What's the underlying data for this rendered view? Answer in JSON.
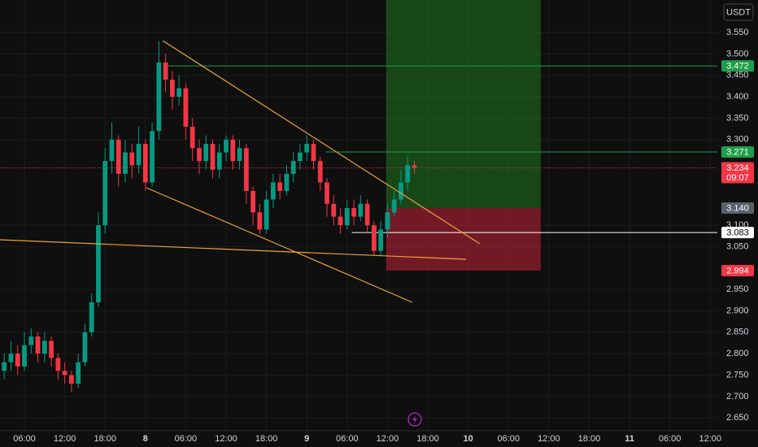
{
  "chart_data": {
    "type": "candlestick",
    "currency": "USDT",
    "x": [
      3,
      4,
      5,
      6,
      7,
      8,
      9,
      10,
      11,
      12,
      13,
      14,
      15,
      16,
      17,
      18,
      19,
      20,
      21,
      22,
      23,
      24,
      25,
      26,
      27,
      28,
      29,
      30,
      31,
      32,
      33,
      34,
      35,
      36,
      37,
      38,
      39,
      40,
      41,
      42,
      43,
      44,
      45,
      46,
      47,
      48,
      49,
      50,
      51,
      52,
      53,
      54,
      55,
      56,
      57,
      58,
      59,
      60,
      61,
      62,
      63,
      64
    ],
    "open": [
      2.76,
      2.78,
      2.8,
      2.77,
      2.82,
      2.84,
      2.8,
      2.83,
      2.79,
      2.76,
      2.75,
      2.73,
      2.78,
      2.85,
      2.92,
      3.1,
      3.25,
      3.3,
      3.22,
      3.27,
      3.24,
      3.29,
      3.2,
      3.32,
      3.48,
      3.44,
      3.4,
      3.42,
      3.33,
      3.28,
      3.25,
      3.29,
      3.23,
      3.27,
      3.3,
      3.25,
      3.28,
      3.18,
      3.13,
      3.09,
      3.16,
      3.2,
      3.18,
      3.22,
      3.25,
      3.27,
      3.29,
      3.25,
      3.2,
      3.15,
      3.12,
      3.1,
      3.14,
      3.12,
      3.15,
      3.1,
      3.04,
      3.09,
      3.13,
      3.16,
      3.2,
      3.24
    ],
    "high": [
      2.8,
      2.83,
      2.82,
      2.85,
      2.86,
      2.85,
      2.85,
      2.84,
      2.8,
      2.78,
      2.76,
      2.8,
      2.87,
      2.94,
      3.13,
      3.28,
      3.34,
      3.31,
      3.3,
      3.29,
      3.33,
      3.3,
      3.34,
      3.53,
      3.5,
      3.46,
      3.45,
      3.43,
      3.35,
      3.3,
      3.31,
      3.3,
      3.29,
      3.31,
      3.31,
      3.3,
      3.29,
      3.19,
      3.15,
      3.18,
      3.22,
      3.22,
      3.24,
      3.27,
      3.29,
      3.31,
      3.3,
      3.26,
      3.21,
      3.17,
      3.14,
      3.16,
      3.16,
      3.17,
      3.16,
      3.11,
      3.11,
      3.15,
      3.18,
      3.23,
      3.26,
      3.25
    ],
    "low": [
      2.74,
      2.76,
      2.75,
      2.76,
      2.8,
      2.78,
      2.78,
      2.77,
      2.74,
      2.73,
      2.71,
      2.72,
      2.77,
      2.84,
      2.91,
      3.08,
      3.22,
      3.19,
      3.2,
      3.21,
      3.22,
      3.18,
      3.19,
      3.3,
      3.41,
      3.37,
      3.38,
      3.3,
      3.25,
      3.22,
      3.23,
      3.21,
      3.21,
      3.25,
      3.23,
      3.23,
      3.15,
      3.1,
      3.08,
      3.08,
      3.14,
      3.16,
      3.17,
      3.2,
      3.23,
      3.25,
      3.23,
      3.18,
      3.12,
      3.1,
      3.08,
      3.09,
      3.1,
      3.11,
      3.08,
      3.03,
      3.03,
      3.07,
      3.12,
      3.15,
      3.18,
      3.22
    ],
    "close": [
      2.78,
      2.8,
      2.77,
      2.82,
      2.84,
      2.8,
      2.83,
      2.79,
      2.76,
      2.75,
      2.73,
      2.78,
      2.85,
      2.92,
      3.1,
      3.25,
      3.3,
      3.22,
      3.27,
      3.24,
      3.29,
      3.2,
      3.32,
      3.48,
      3.44,
      3.4,
      3.42,
      3.33,
      3.28,
      3.25,
      3.29,
      3.23,
      3.27,
      3.3,
      3.25,
      3.28,
      3.18,
      3.13,
      3.09,
      3.16,
      3.2,
      3.18,
      3.22,
      3.25,
      3.27,
      3.29,
      3.25,
      3.2,
      3.15,
      3.12,
      3.1,
      3.14,
      3.12,
      3.15,
      3.1,
      3.04,
      3.09,
      3.13,
      3.16,
      3.2,
      3.24,
      3.234
    ],
    "up_color": "#089981",
    "down_color": "#f23645",
    "xlim": [
      2.37,
      109.06
    ],
    "ylim": [
      2.62,
      3.626
    ],
    "xticks": [
      {
        "value": 6,
        "label": "06:00"
      },
      {
        "value": 12,
        "label": "12:00"
      },
      {
        "value": 18,
        "label": "18:00"
      },
      {
        "value": 24,
        "label": "8"
      },
      {
        "value": 30,
        "label": "06:00"
      },
      {
        "value": 36,
        "label": "12:00"
      },
      {
        "value": 42,
        "label": "18:00"
      },
      {
        "value": 48,
        "label": "9"
      },
      {
        "value": 54,
        "label": "06:00"
      },
      {
        "value": 60,
        "label": "12:00"
      },
      {
        "value": 66,
        "label": "18:00"
      },
      {
        "value": 72,
        "label": "10"
      },
      {
        "value": 78,
        "label": "06:00"
      },
      {
        "value": 84,
        "label": "12:00"
      },
      {
        "value": 90,
        "label": "18:00"
      },
      {
        "value": 96,
        "label": "11"
      },
      {
        "value": 102,
        "label": "06:00"
      },
      {
        "value": 108,
        "label": "12:00"
      }
    ],
    "yticks": [
      {
        "value": 3.55,
        "label": "3.550"
      },
      {
        "value": 3.5,
        "label": "3.500"
      },
      {
        "value": 3.45,
        "label": "3.450"
      },
      {
        "value": 3.4,
        "label": "3.400"
      },
      {
        "value": 3.35,
        "label": "3.350"
      },
      {
        "value": 3.3,
        "label": "3.300"
      },
      {
        "value": 3.1,
        "label": "3.100"
      },
      {
        "value": 3.05,
        "label": "3.050"
      },
      {
        "value": 2.95,
        "label": "2.950"
      },
      {
        "value": 2.9,
        "label": "2.900"
      },
      {
        "value": 2.85,
        "label": "2.850"
      },
      {
        "value": 2.8,
        "label": "2.800"
      },
      {
        "value": 2.75,
        "label": "2.750"
      },
      {
        "value": 2.7,
        "label": "2.700"
      },
      {
        "value": 2.65,
        "label": "2.650"
      }
    ],
    "grid": true,
    "position": {
      "start": 59.8,
      "end": 82.8,
      "entry": 3.14,
      "stop": 2.994
    },
    "levels": [
      {
        "value": 3.472,
        "label": "3.472",
        "color": "#1e9e4a",
        "start": 26.6,
        "line": "solid"
      },
      {
        "value": 3.271,
        "label": "3.271",
        "color": "#1e9e4a",
        "start": 50.8,
        "line": "solid"
      },
      {
        "value": 3.234,
        "label": "3.234",
        "color": "#f23645",
        "start": 2.37,
        "line": "dotted",
        "countdown": "09:07"
      },
      {
        "value": 3.14,
        "label": "3.140",
        "color": "#5d606b"
      },
      {
        "value": 3.083,
        "label": "3.083",
        "color": "#ffffff",
        "start": 54.7,
        "line": "solid"
      },
      {
        "value": 2.994,
        "label": "2.994",
        "color": "#f23645"
      }
    ]
  }
}
